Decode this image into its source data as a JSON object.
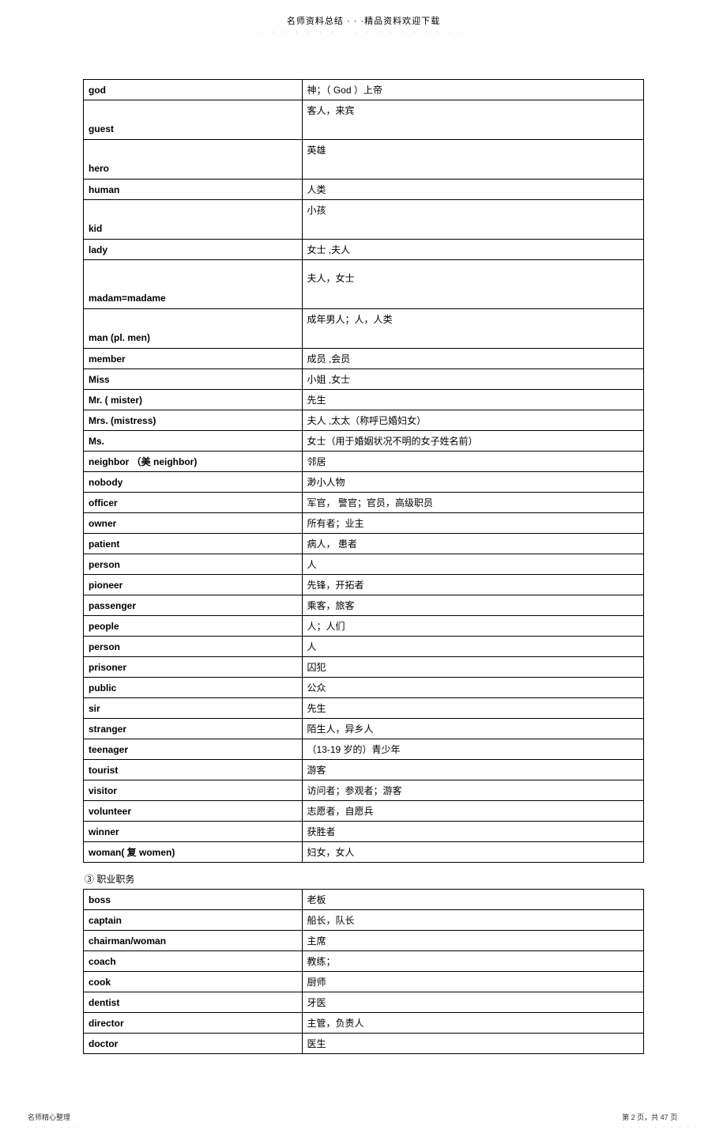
{
  "header": {
    "title": "名师资料总结 · · ·精品资料欢迎下载",
    "dots": "· · · · · · · · · · · · · · · · · ·"
  },
  "table1": {
    "rows": [
      {
        "en": "god",
        "zh": "神；（ God ）上帝",
        "style": "normal"
      },
      {
        "en": "guest",
        "zh": "客人，来宾",
        "style": "tall"
      },
      {
        "en": "hero",
        "zh": "英雄",
        "style": "tall"
      },
      {
        "en": "human",
        "zh": "人类",
        "style": "normal"
      },
      {
        "en": "kid",
        "zh": "小孩",
        "style": "tall"
      },
      {
        "en": "lady",
        "zh": "女士 ,夫人",
        "style": "normal"
      },
      {
        "en": "madam=madame",
        "zh": "夫人，女士",
        "style": "vtall"
      },
      {
        "en": "man (pl.   men)",
        "zh": "成年男人；人，人类",
        "style": "tall"
      },
      {
        "en": "member",
        "zh": "成员 ,会员",
        "style": "normal"
      },
      {
        "en": "Miss",
        "zh": "小姐 ,女士",
        "style": "normal"
      },
      {
        "en": "Mr. ( mister)",
        "zh": "先生",
        "style": "normal"
      },
      {
        "en": "Mrs. (mistress)",
        "zh": "夫人 ,太太（称呼已婚妇女）",
        "style": "normal"
      },
      {
        "en": "Ms.",
        "zh": "女士（用于婚姻状况不明的女子姓名前）",
        "style": "normal"
      },
      {
        "en": "neighbor （美  neighbor)",
        "zh": "邻居",
        "style": "normal"
      },
      {
        "en": "nobody",
        "zh": "渺小人物",
        "style": "normal"
      },
      {
        "en": "officer",
        "zh": "军官， 警官；官员，高级职员",
        "style": "normal"
      },
      {
        "en": "owner",
        "zh": "所有者；业主",
        "style": "normal"
      },
      {
        "en": "patient",
        "zh": "病人， 患者",
        "style": "normal"
      },
      {
        "en": "person",
        "zh": "人",
        "style": "normal"
      },
      {
        "en": "pioneer",
        "zh": "先锋，开拓者",
        "style": "normal"
      },
      {
        "en": "passenger",
        "zh": "乘客，旅客",
        "style": "normal"
      },
      {
        "en": "people",
        "zh": "人；人们",
        "style": "normal"
      },
      {
        "en": "person",
        "zh": "人",
        "style": "normal"
      },
      {
        "en": "prisoner",
        "zh": "囚犯",
        "style": "normal"
      },
      {
        "en": "public",
        "zh": "公众",
        "style": "normal"
      },
      {
        "en": "sir",
        "zh": "先生",
        "style": "normal"
      },
      {
        "en": "stranger",
        "zh": "陌生人，异乡人",
        "style": "normal"
      },
      {
        "en": "teenager",
        "zh": "（13-19  岁的）青少年",
        "style": "normal"
      },
      {
        "en": "tourist",
        "zh": "游客",
        "style": "normal"
      },
      {
        "en": "visitor",
        "zh": "访问者；参观者；游客",
        "style": "normal"
      },
      {
        "en": "volunteer",
        "zh": "志愿者，自愿兵",
        "style": "normal"
      },
      {
        "en": "winner",
        "zh": "获胜者",
        "style": "normal"
      },
      {
        "en": "woman( 复 women)",
        "zh": "妇女，女人",
        "style": "normal"
      }
    ]
  },
  "section2_title": "③  职业职务",
  "table2": {
    "rows": [
      {
        "en": "boss",
        "zh": "老板"
      },
      {
        "en": "captain",
        "zh": "船长，队长"
      },
      {
        "en": "chairman/woman",
        "zh": "主席"
      },
      {
        "en": "coach",
        "zh": "教练；"
      },
      {
        "en": "cook",
        "zh": "厨师"
      },
      {
        "en": "dentist",
        "zh": "牙医"
      },
      {
        "en": "director",
        "zh": "主管，负责人"
      },
      {
        "en": "doctor",
        "zh": "医生"
      }
    ]
  },
  "footer": {
    "left": "名师精心整理",
    "left_dots": "· · · · · · ·",
    "right": "第 2 页，共 47 页",
    "right_dots": "· · · · · · · · · ·"
  },
  "colors": {
    "text": "#000000",
    "border": "#000000",
    "background": "#ffffff",
    "dots": "#999999"
  }
}
